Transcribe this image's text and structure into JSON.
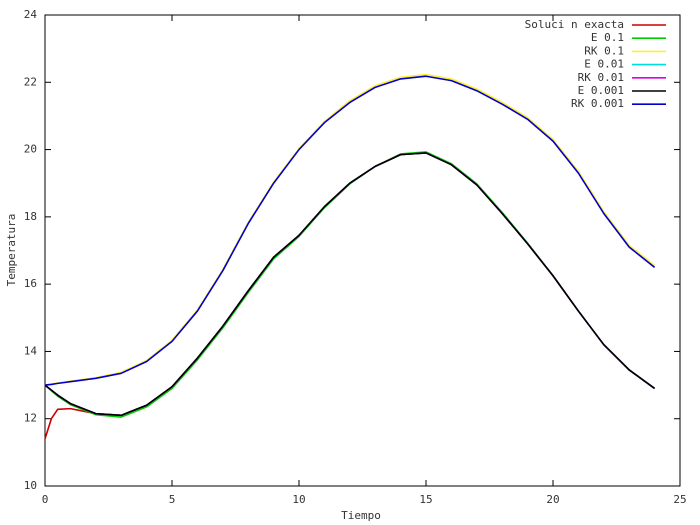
{
  "chart_data": {
    "type": "line",
    "xlabel": "Tiempo",
    "ylabel": "Temperatura",
    "x": [
      0,
      0.25,
      0.5,
      1,
      2,
      3,
      4,
      5,
      6,
      7,
      8,
      9,
      10,
      11,
      12,
      13,
      14,
      15,
      16,
      17,
      18,
      19,
      20,
      21,
      22,
      23,
      24
    ],
    "xlim": [
      0,
      25
    ],
    "xticks": [
      0,
      5,
      10,
      15,
      20,
      25
    ],
    "ylim": [
      10,
      24
    ],
    "yticks": [
      10,
      12,
      14,
      16,
      18,
      20,
      22,
      24
    ],
    "legend": "top-right",
    "series": [
      {
        "name": "Soluci n exacta",
        "color": "#cc0000",
        "values": [
          11.4,
          12.0,
          12.28,
          12.3,
          12.15,
          12.1,
          12.4,
          12.95,
          13.8,
          14.75,
          15.8,
          16.8,
          17.45,
          18.3,
          19.0,
          19.5,
          19.85,
          19.9,
          19.55,
          18.95,
          18.1,
          17.2,
          16.25,
          15.2,
          14.2,
          13.45,
          12.9
        ]
      },
      {
        "name": "E 0.1",
        "color": "#00cc00",
        "values": [
          13.0,
          12.83,
          12.67,
          12.42,
          12.12,
          12.05,
          12.35,
          12.9,
          13.75,
          14.7,
          15.75,
          16.75,
          17.42,
          18.27,
          18.98,
          19.5,
          19.87,
          19.93,
          19.58,
          18.98,
          18.13,
          17.22,
          16.25,
          15.2,
          14.2,
          13.45,
          12.9
        ]
      },
      {
        "name": "RK 0.1",
        "color": "#ffee33",
        "values": [
          13.0,
          13.03,
          13.06,
          13.12,
          13.22,
          13.38,
          13.73,
          14.33,
          15.23,
          16.43,
          17.83,
          19.03,
          20.03,
          20.83,
          21.45,
          21.9,
          22.15,
          22.23,
          22.1,
          21.8,
          21.4,
          20.95,
          20.3,
          19.35,
          18.15,
          17.15,
          16.55
        ]
      },
      {
        "name": "E 0.01",
        "color": "#00dddd",
        "values": [
          13.0,
          12.85,
          12.7,
          12.45,
          12.15,
          12.1,
          12.4,
          12.95,
          13.8,
          14.75,
          15.8,
          16.8,
          17.45,
          18.3,
          19.0,
          19.5,
          19.85,
          19.9,
          19.55,
          18.95,
          18.1,
          17.2,
          16.25,
          15.2,
          14.2,
          13.45,
          12.9
        ]
      },
      {
        "name": "RK 0.01",
        "color": "#dd00dd",
        "values": [
          13.0,
          12.85,
          12.7,
          12.45,
          12.15,
          12.1,
          12.4,
          12.95,
          13.8,
          14.75,
          15.8,
          16.8,
          17.45,
          18.3,
          19.0,
          19.5,
          19.85,
          19.9,
          19.55,
          18.95,
          18.1,
          17.2,
          16.25,
          15.2,
          14.2,
          13.45,
          12.9
        ]
      },
      {
        "name": "E 0.001",
        "color": "#000000",
        "values": [
          13.0,
          12.85,
          12.7,
          12.45,
          12.15,
          12.1,
          12.4,
          12.95,
          13.8,
          14.75,
          15.8,
          16.8,
          17.45,
          18.3,
          19.0,
          19.5,
          19.85,
          19.9,
          19.55,
          18.95,
          18.1,
          17.2,
          16.25,
          15.2,
          14.2,
          13.45,
          12.9
        ]
      },
      {
        "name": "RK 0.001",
        "color": "#0000cc",
        "values": [
          13.0,
          13.02,
          13.05,
          13.1,
          13.2,
          13.35,
          13.7,
          14.3,
          15.2,
          16.4,
          17.8,
          19.0,
          20.0,
          20.8,
          21.4,
          21.85,
          22.1,
          22.18,
          22.05,
          21.75,
          21.35,
          20.9,
          20.25,
          19.3,
          18.1,
          17.1,
          16.5
        ]
      }
    ]
  }
}
